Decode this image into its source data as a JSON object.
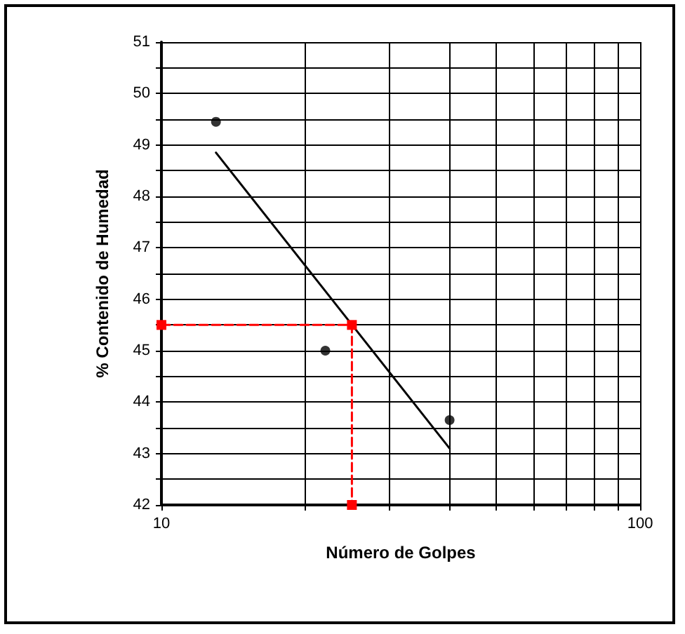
{
  "chart_data": {
    "type": "scatter",
    "xlabel": "Número de Golpes",
    "ylabel": "% Contenido de Humedad",
    "log": "x",
    "grid": true,
    "xlim": [
      10,
      100
    ],
    "xticks": [
      10,
      {
        "value": 20,
        "label": null
      },
      {
        "value": 30,
        "label": null
      },
      {
        "value": 40,
        "label": null
      },
      {
        "value": 50,
        "label": null
      },
      {
        "value": 60,
        "label": null
      },
      {
        "value": 70,
        "label": null
      },
      {
        "value": 80,
        "label": null
      },
      {
        "value": 90,
        "label": null
      },
      100
    ],
    "ylim": [
      42,
      51
    ],
    "yticks": [
      42,
      {
        "value": 42.5,
        "label": null
      },
      43,
      {
        "value": 43.5,
        "label": null
      },
      44,
      {
        "value": 44.5,
        "label": null
      },
      45,
      {
        "value": 45.5,
        "label": null
      },
      46,
      {
        "value": 46.5,
        "label": null
      },
      47,
      {
        "value": 47.5,
        "label": null
      },
      48,
      {
        "value": 48.5,
        "label": null
      },
      49,
      {
        "value": 49.5,
        "label": null
      },
      50,
      {
        "value": 50.5,
        "label": null
      },
      51
    ],
    "series": [
      {
        "type": "line",
        "color": "#000000",
        "marker": "none",
        "line_style": "solid",
        "x": [
          13,
          40
        ],
        "values": [
          48.85,
          43.1
        ]
      },
      {
        "type": "line",
        "color": "#ff0000",
        "marker": "square",
        "line_style": "dashed",
        "x": [
          10,
          25,
          25
        ],
        "values": [
          45.5,
          45.5,
          42
        ]
      },
      {
        "color": "#000000",
        "marker": "circle",
        "x": [
          13,
          22,
          40
        ],
        "values": [
          49.45,
          45,
          43.65
        ]
      }
    ]
  }
}
